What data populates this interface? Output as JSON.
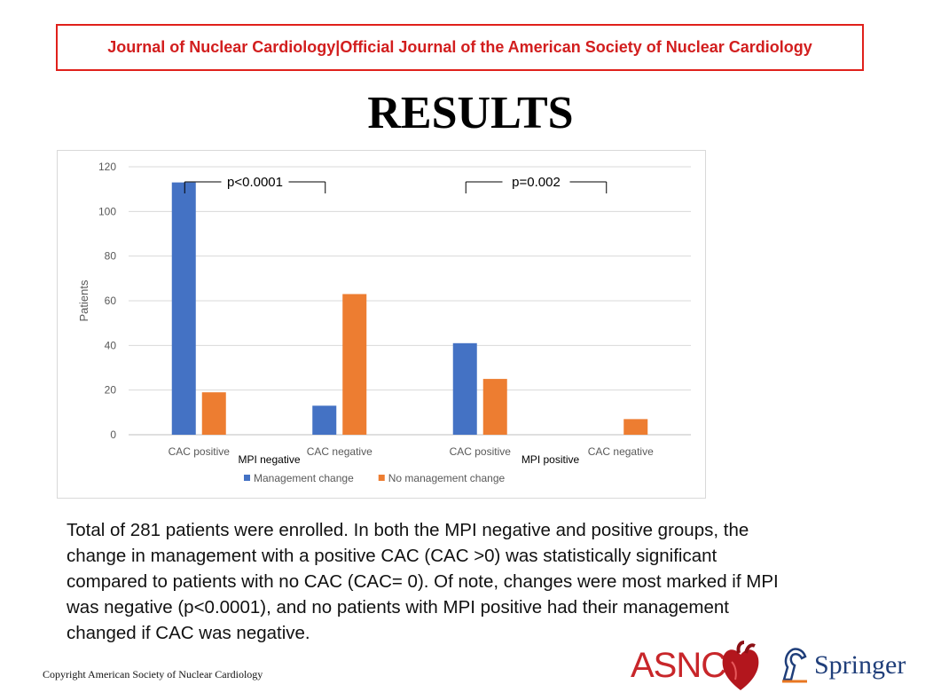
{
  "header": {
    "journal": "Journal of Nuclear Cardiology",
    "separator": "|",
    "subtitle": "Official Journal of the American Society of Nuclear Cardiology"
  },
  "page_title": "RESULTS",
  "summary": "Total of 281 patients were enrolled. In both the MPI negative and positive groups, the change in management with a positive CAC (CAC >0) was statistically significant compared to patients with no CAC (CAC= 0). Of note, changes were most marked if MPI was negative (p<0.0001), and no patients with MPI positive had their management changed if CAC was negative.",
  "copyright": "Copyright  American Society of Nuclear Cardiology",
  "logos": {
    "asnc": "ASNC",
    "springer": "Springer"
  },
  "colors": {
    "header": "#d21e1e",
    "management": "#4472c4",
    "no_management": "#ed7d31"
  },
  "chart_data": {
    "type": "bar",
    "title": "",
    "xlabel": "",
    "ylabel": "Patients",
    "ylim": [
      0,
      120
    ],
    "yticks": [
      0,
      20,
      40,
      60,
      80,
      100,
      120
    ],
    "grid": true,
    "legend_position": "bottom",
    "categories": [
      "CAC positive",
      "CAC negative",
      "CAC positive",
      "CAC negative"
    ],
    "groups": [
      "MPI negative",
      "MPI positive"
    ],
    "series": [
      {
        "name": "Management change",
        "color": "#4472c4",
        "values": [
          113,
          13,
          41,
          0
        ]
      },
      {
        "name": "No management change",
        "color": "#ed7d31",
        "values": [
          19,
          63,
          25,
          7
        ]
      }
    ],
    "annotations": [
      "p<0.0001",
      "p=0.002"
    ]
  }
}
